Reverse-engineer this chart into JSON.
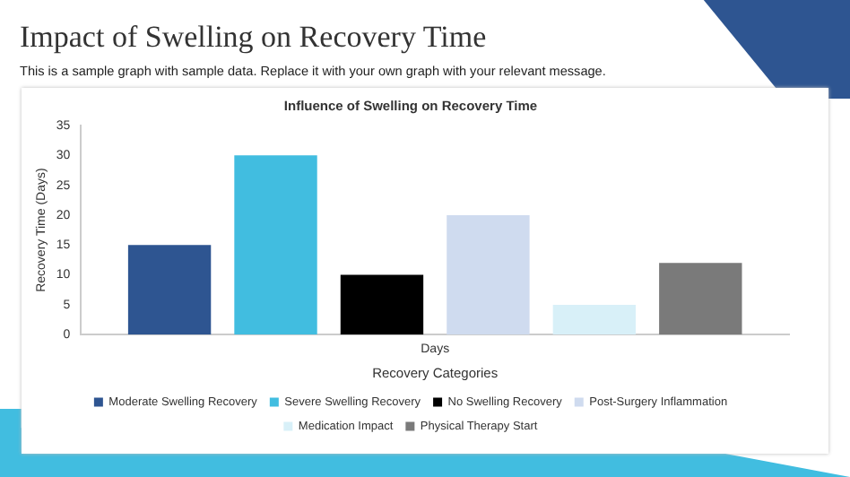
{
  "chart_data": {
    "type": "bar",
    "title": "Influence of Swelling on Recovery Time",
    "xlabel": "Recovery Categories",
    "ylabel": "Recovery Time (Days)",
    "annotations": [
      "Impact of Swelling on Recovery Time",
      "This is a sample graph with sample data. Replace it with your own graph with your relevant message."
    ],
    "categories": [
      "Days"
    ],
    "series": [
      {
        "name": "Moderate Swelling Recovery",
        "color": "#2e5591",
        "values": [
          15
        ]
      },
      {
        "name": "Severe Swelling Recovery",
        "color": "#41bde0",
        "values": [
          30
        ]
      },
      {
        "name": "No Swelling Recovery",
        "color": "#000000",
        "values": [
          10
        ]
      },
      {
        "name": "Post-Surgery Inflammation",
        "color": "#cfdbef",
        "values": [
          20
        ]
      },
      {
        "name": "Medication Impact",
        "color": "#d8f0f8",
        "values": [
          5
        ]
      },
      {
        "name": "Physical Therapy Start",
        "color": "#7a7a7a",
        "values": [
          12
        ]
      }
    ],
    "ylim": [
      0,
      35
    ],
    "yticks": [
      0,
      5,
      10,
      15,
      20,
      25,
      30,
      35
    ],
    "grid": false,
    "legend": "bottom"
  }
}
